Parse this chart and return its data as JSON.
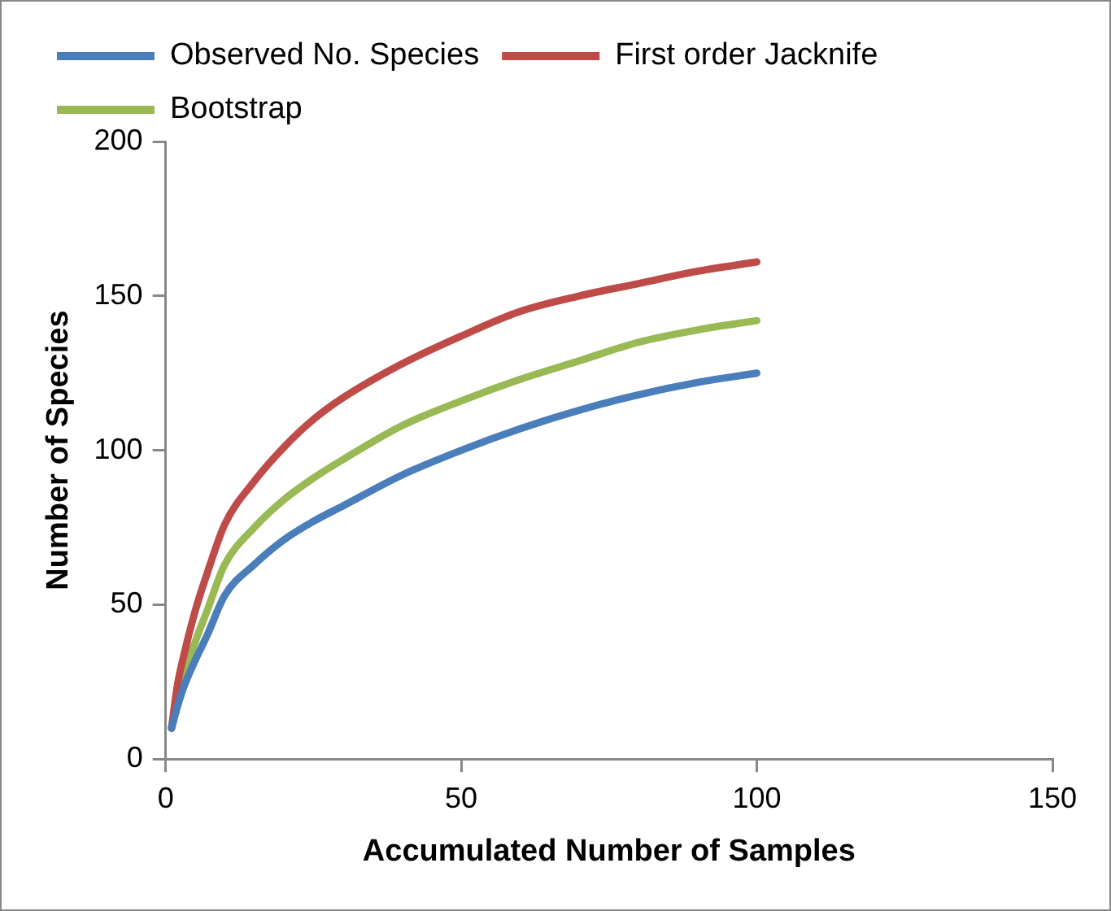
{
  "chart_data": {
    "type": "line",
    "xlabel": "Accumulated Number of Samples",
    "ylabel": "Number of Species",
    "x": [
      1,
      2,
      3,
      5,
      7,
      10,
      15,
      20,
      25,
      30,
      40,
      50,
      60,
      70,
      80,
      90,
      100
    ],
    "series": [
      {
        "name": "Observed No. Species",
        "color": "#4a7ebb",
        "values": [
          10,
          17,
          23,
          32,
          40,
          53,
          63,
          71,
          77,
          82,
          92,
          100,
          107,
          113,
          118,
          122,
          125
        ]
      },
      {
        "name": "First order Jacknife",
        "color": "#be4b48",
        "values": [
          10,
          24,
          33,
          48,
          60,
          76,
          90,
          101,
          110,
          117,
          128,
          137,
          145,
          150,
          154,
          158,
          161
        ]
      },
      {
        "name": "Bootstrap",
        "color": "#98b954",
        "values": [
          10,
          20,
          27,
          38,
          48,
          63,
          75,
          84,
          91,
          97,
          108,
          116,
          123,
          129,
          135,
          139,
          142
        ]
      }
    ],
    "xlim": [
      0,
      150
    ],
    "xticks": [
      0,
      50,
      100,
      150
    ],
    "ylim": [
      0,
      200
    ],
    "yticks": [
      0,
      50,
      100,
      150,
      200
    ],
    "grid": false,
    "legend": "top left",
    "marker": "none",
    "line_style": "solid"
  }
}
